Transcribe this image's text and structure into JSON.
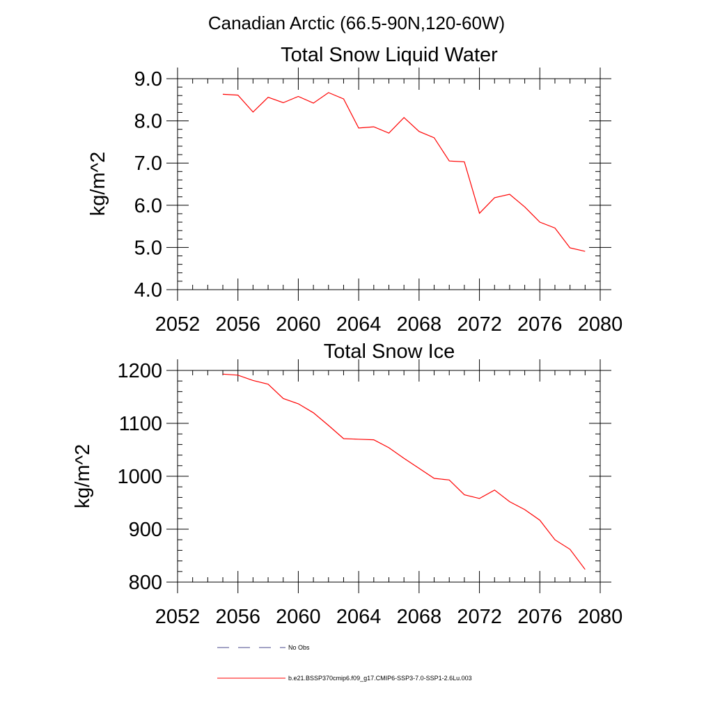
{
  "figure": {
    "title": "Canadian Arctic (66.5-90N,120-60W)"
  },
  "chart_data": [
    {
      "type": "line",
      "title": "Total Snow Liquid Water",
      "xlabel": "",
      "ylabel": "kg/m^2",
      "xlim": [
        2052,
        2080
      ],
      "ylim": [
        4.0,
        9.0
      ],
      "x_ticks": [
        2052,
        2056,
        2060,
        2064,
        2068,
        2072,
        2076,
        2080
      ],
      "y_ticks": [
        4.0,
        5.0,
        6.0,
        7.0,
        8.0,
        9.0
      ],
      "y_tick_labels": [
        "4.0",
        "5.0",
        "6.0",
        "7.0",
        "8.0",
        "9.0"
      ],
      "grid": false,
      "series": [
        {
          "color": "#ff0000",
          "x": [
            2055,
            2056,
            2057,
            2058,
            2059,
            2060,
            2061,
            2062,
            2063,
            2064,
            2065,
            2066,
            2067,
            2068,
            2069,
            2070,
            2071,
            2072,
            2073,
            2074,
            2075,
            2076,
            2077,
            2078,
            2079
          ],
          "values": [
            8.63,
            8.61,
            8.21,
            8.56,
            8.43,
            8.58,
            8.42,
            8.67,
            8.52,
            7.83,
            7.86,
            7.71,
            8.08,
            7.75,
            7.6,
            7.05,
            7.03,
            5.81,
            6.18,
            6.26,
            5.96,
            5.6,
            5.46,
            4.99,
            4.91
          ]
        }
      ]
    },
    {
      "type": "line",
      "title": "Total Snow Ice",
      "xlabel": "",
      "ylabel": "kg/m^2",
      "xlim": [
        2052,
        2080
      ],
      "ylim": [
        800,
        1200
      ],
      "x_ticks": [
        2052,
        2056,
        2060,
        2064,
        2068,
        2072,
        2076,
        2080
      ],
      "y_ticks": [
        800,
        900,
        1000,
        1100,
        1200
      ],
      "y_tick_labels": [
        "800",
        "900",
        "1000",
        "1100",
        "1200"
      ],
      "grid": false,
      "series": [
        {
          "color": "#ff0000",
          "x": [
            2055,
            2056,
            2057,
            2058,
            2059,
            2060,
            2061,
            2062,
            2063,
            2064,
            2065,
            2066,
            2067,
            2068,
            2069,
            2070,
            2071,
            2072,
            2073,
            2074,
            2075,
            2076,
            2077,
            2078,
            2079
          ],
          "values": [
            1193,
            1191,
            1181,
            1174,
            1147,
            1137,
            1120,
            1096,
            1071,
            1070,
            1069,
            1054,
            1034,
            1015,
            996,
            993,
            965,
            958,
            974,
            952,
            937,
            917,
            880,
            862,
            824
          ]
        }
      ]
    }
  ],
  "legend": {
    "placement": "bottom",
    "items": [
      {
        "label": "No Obs",
        "style": "dashed",
        "color": "#4a4a8c"
      },
      {
        "label": "b.e21.BSSP370cmip6.f09_g17.CMIP6-SSP3-7.0-SSP1-2.6Lu.003",
        "style": "solid",
        "color": "#ff0000"
      }
    ]
  }
}
